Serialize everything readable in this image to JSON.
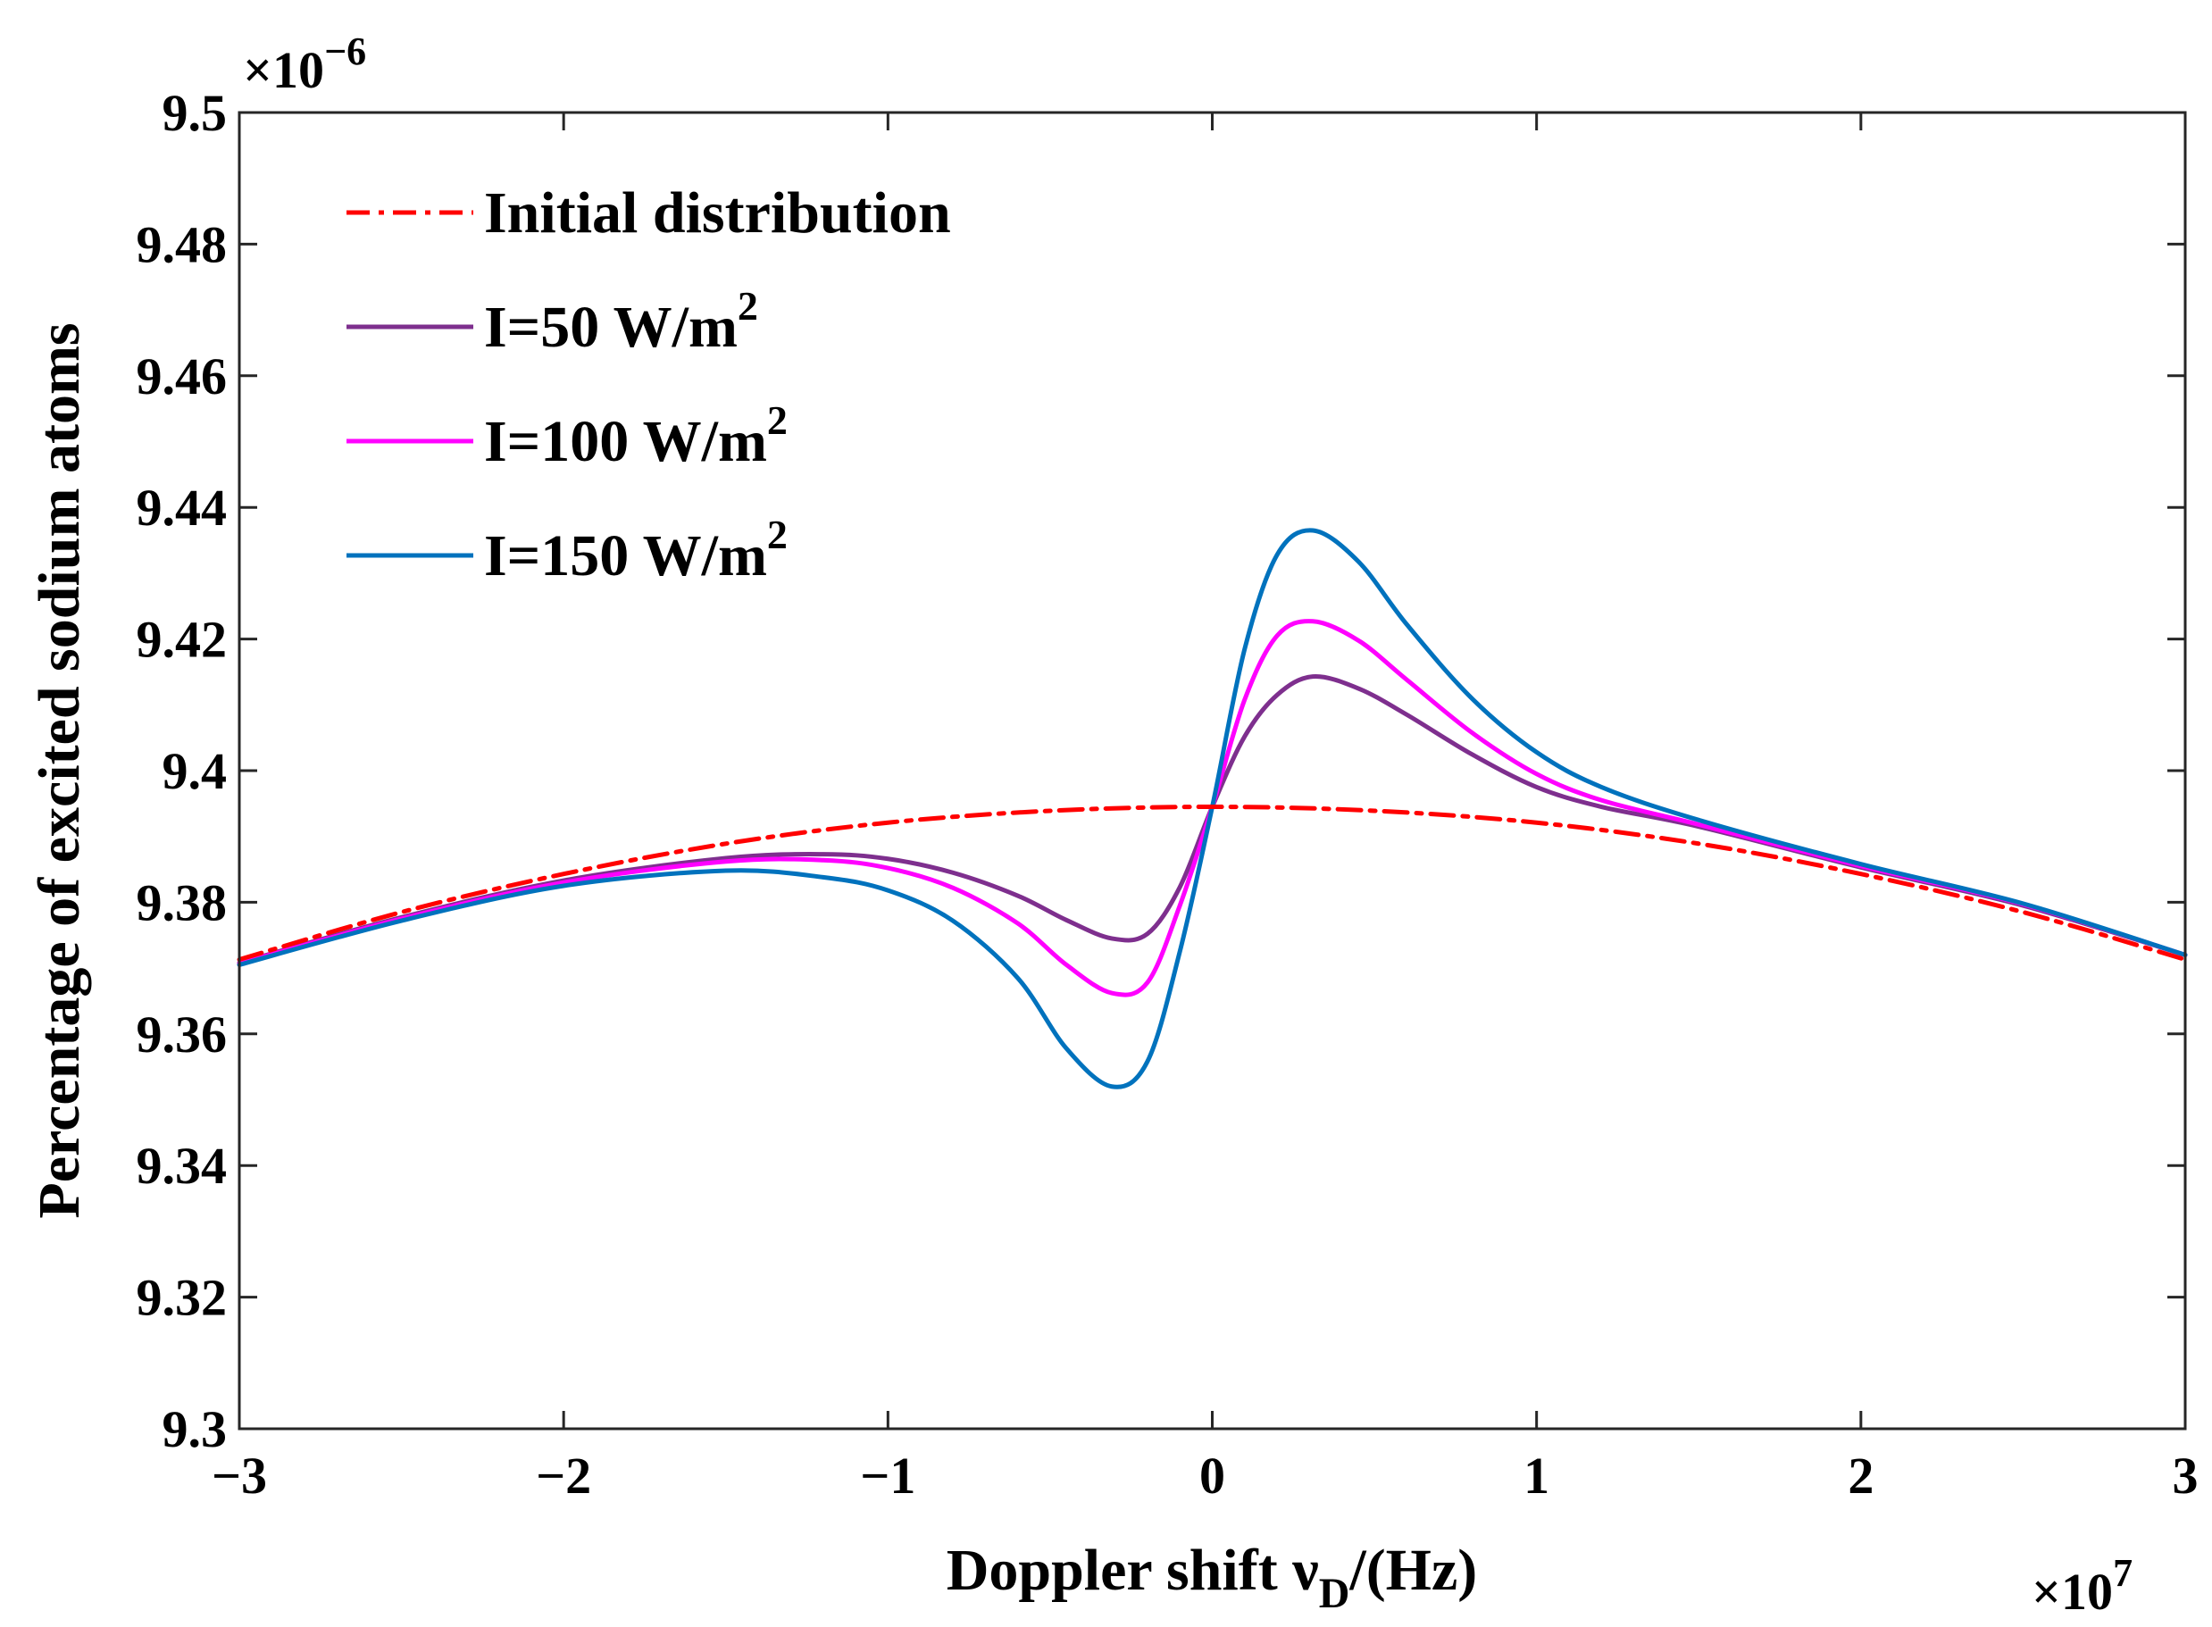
{
  "chart_data": {
    "type": "line",
    "title": "",
    "xlabel_main": "Doppler  shift ν",
    "xlabel_sub": "D",
    "xlabel_tail": "/(Hz)",
    "ylabel": "Percentage of excited sodium atoms",
    "x_multiplier": {
      "base": "×10",
      "exponent": "7"
    },
    "y_multiplier": {
      "base": "×10",
      "exponent": "−6"
    },
    "xlim": [
      -3,
      3
    ],
    "ylim": [
      9.3,
      9.5
    ],
    "x_ticks": [
      -3,
      -2,
      -1,
      0,
      1,
      2,
      3
    ],
    "x_tick_labels": [
      "−3",
      "−2",
      "−1",
      "0",
      "1",
      "2",
      "3"
    ],
    "y_ticks": [
      9.3,
      9.32,
      9.34,
      9.36,
      9.38,
      9.4,
      9.42,
      9.44,
      9.46,
      9.48,
      9.5
    ],
    "y_tick_labels": [
      "9.3",
      "9.32",
      "9.34",
      "9.36",
      "9.38",
      "9.4",
      "9.42",
      "9.44",
      "9.46",
      "9.48",
      "9.5"
    ],
    "grid": false,
    "legend_position": "top-left",
    "series": [
      {
        "name": "Initial distribution",
        "color": "#ff0000",
        "style": "dash-dot",
        "x": [
          -3,
          -2.5,
          -2,
          -1.5,
          -1,
          -0.5,
          0,
          0.5,
          1,
          1.5,
          2,
          2.5,
          3
        ],
        "y": [
          9.3713,
          9.3785,
          9.3843,
          9.3889,
          9.3921,
          9.3939,
          9.3945,
          9.3939,
          9.3921,
          9.3889,
          9.3843,
          9.3785,
          9.3713
        ]
      },
      {
        "name": "I=50 W/m",
        "name_sup": "2",
        "color": "#7e2f8e",
        "style": "solid",
        "x": [
          -3,
          -2.5,
          -2,
          -1.5,
          -1.2,
          -1,
          -0.8,
          -0.6,
          -0.45,
          -0.31,
          -0.2,
          -0.1,
          0,
          0.1,
          0.2,
          0.31,
          0.45,
          0.6,
          0.8,
          1,
          1.2,
          1.5,
          2,
          2.5,
          3
        ],
        "y": [
          9.3708,
          9.3777,
          9.3833,
          9.3867,
          9.3873,
          9.3866,
          9.3845,
          9.381,
          9.3773,
          9.3745,
          9.3752,
          9.3823,
          9.3945,
          9.4052,
          9.4115,
          9.4143,
          9.4125,
          9.4085,
          9.4025,
          9.3975,
          9.3945,
          9.3915,
          9.3853,
          9.3795,
          9.372
        ]
      },
      {
        "name": "I=100 W/m",
        "name_sup": "2",
        "color": "#ff00ff",
        "style": "solid",
        "x": [
          -3,
          -2.5,
          -2,
          -1.5,
          -1.2,
          -1,
          -0.8,
          -0.6,
          -0.45,
          -0.31,
          -0.2,
          -0.1,
          0,
          0.1,
          0.2,
          0.31,
          0.45,
          0.6,
          0.8,
          1,
          1.2,
          1.5,
          2,
          2.5,
          3
        ],
        "y": [
          9.3707,
          9.3775,
          9.383,
          9.3862,
          9.3864,
          9.3852,
          9.3822,
          9.3768,
          9.3705,
          9.3662,
          9.3678,
          9.3795,
          9.3945,
          9.4108,
          9.4205,
          9.4227,
          9.4198,
          9.4138,
          9.4058,
          9.3995,
          9.3955,
          9.3918,
          9.3855,
          9.3797,
          9.372
        ]
      },
      {
        "name": "I=150 W/m",
        "name_sup": "2",
        "color": "#0072bd",
        "style": "solid",
        "x": [
          -3,
          -2.5,
          -2,
          -1.5,
          -1.2,
          -1,
          -0.8,
          -0.6,
          -0.45,
          -0.31,
          -0.2,
          -0.1,
          0,
          0.1,
          0.2,
          0.31,
          0.45,
          0.6,
          0.8,
          1,
          1.2,
          1.5,
          2,
          2.5,
          3
        ],
        "y": [
          9.3705,
          9.3772,
          9.3825,
          9.3848,
          9.3838,
          9.3818,
          9.3772,
          9.3685,
          9.3578,
          9.352,
          9.3558,
          9.3725,
          9.3945,
          9.4185,
          9.4328,
          9.4365,
          9.4318,
          9.4222,
          9.411,
          9.4028,
          9.3975,
          9.3925,
          9.3858,
          9.3798,
          9.372
        ]
      }
    ]
  }
}
